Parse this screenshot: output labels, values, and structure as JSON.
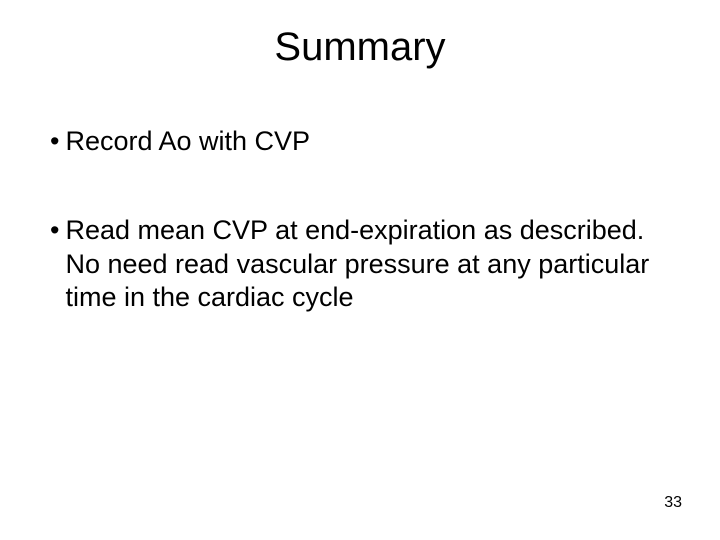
{
  "slide": {
    "title": "Summary",
    "bullets": [
      "Record Ao with CVP",
      "Read mean CVP at end-expiration as described.  No need read vascular pressure at any particular time in the cardiac cycle"
    ],
    "page_number": "33",
    "title_fontsize": 40,
    "body_fontsize": 27,
    "pagenum_fontsize": 16,
    "font_family": "Comic Sans MS",
    "background_color": "#ffffff",
    "text_color": "#000000",
    "bullet_char": "•"
  }
}
